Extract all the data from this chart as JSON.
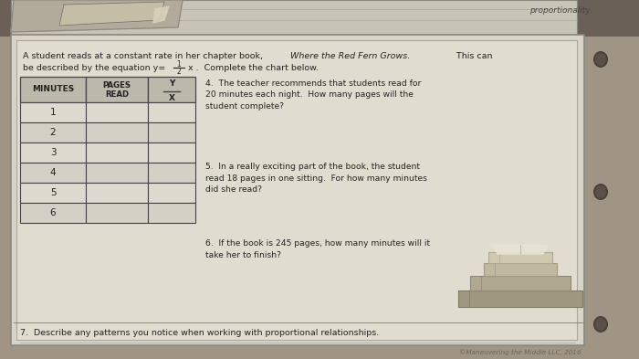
{
  "bg_color_top": "#7a6e60",
  "bg_color_bottom": "#a09080",
  "paper_color": "#d8d4c8",
  "paper_border_color": "#888880",
  "inner_paper_color": "#e0dcd0",
  "top_strip_color": "#ccc8bc",
  "top_section_color": "#d0ccbf",
  "hole_color": "#4a4038",
  "top_proportionality_text": "proportionality.",
  "intro_line1": "A student reads at a constant rate in her chapter book, ",
  "intro_line1_italic": "Where the Red Fern Grows.",
  "intro_line1_end": "  This can",
  "intro_line2_pre": "be described by the equation y=",
  "intro_line2_post": "x .  Complete the chart below.",
  "table_headers_col0": "MINUTES",
  "table_headers_col1_line1": "PAGES",
  "table_headers_col1_line2": "READ",
  "table_headers_col2_top": "Y",
  "table_headers_col2_bot": "X",
  "table_rows": [
    "1",
    "2",
    "3",
    "4",
    "5",
    "6"
  ],
  "q4": "4.  The teacher recommends that students read for\n20 minutes each night.  How many pages will the\nstudent complete?",
  "q5": "5.  In a really exciting part of the book, the student\nread 18 pages in one sitting.  For how many minutes\ndid she read?",
  "q6": "6.  If the book is 245 pages, how many minutes will it\ntake her to finish?",
  "q7": "7.  Describe any patterns you notice when working with proportional relationships.",
  "copyright": "©Maneuvering the Middle LLC, 2016",
  "text_color": "#222222",
  "table_border_color": "#444444",
  "table_header_bg": "#bcb8ac",
  "table_row_bg1": "#dedad0",
  "table_row_bg2": "#d4d0c6",
  "figsize": [
    7.0,
    3.93
  ],
  "dpi": 100
}
